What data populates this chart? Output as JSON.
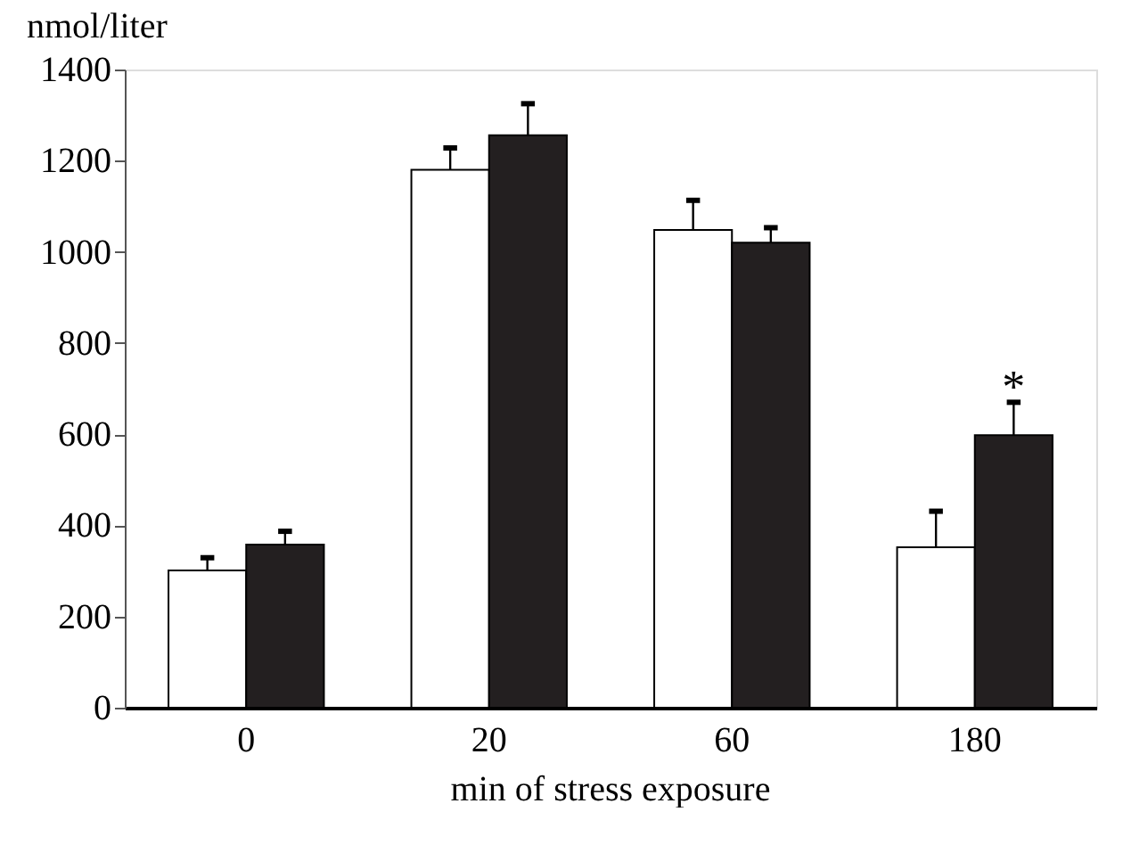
{
  "chart_data": {
    "type": "bar",
    "ylabel": "nmol/liter",
    "xlabel": "min of stress exposure",
    "categories": [
      "0",
      "20",
      "60",
      "180"
    ],
    "series": [
      {
        "color": "#ffffff",
        "values": [
          301,
          1180,
          1048,
          352
        ],
        "errors": [
          [
            301,
            329
          ],
          [
            1180,
            1228
          ],
          [
            1048,
            1113
          ],
          [
            352,
            431
          ]
        ]
      },
      {
        "color": "#231f20",
        "values": [
          358,
          1256,
          1020,
          598
        ],
        "errors": [
          [
            358,
            387
          ],
          [
            1256,
            1325
          ],
          [
            1020,
            1053
          ],
          [
            598,
            670
          ]
        ]
      }
    ],
    "annotations": [
      "*"
    ],
    "ylim": [
      0,
      1400
    ],
    "yticks": [
      0,
      200,
      400,
      600,
      800,
      1000,
      1200,
      1400
    ],
    "legend": false,
    "grid": false
  }
}
